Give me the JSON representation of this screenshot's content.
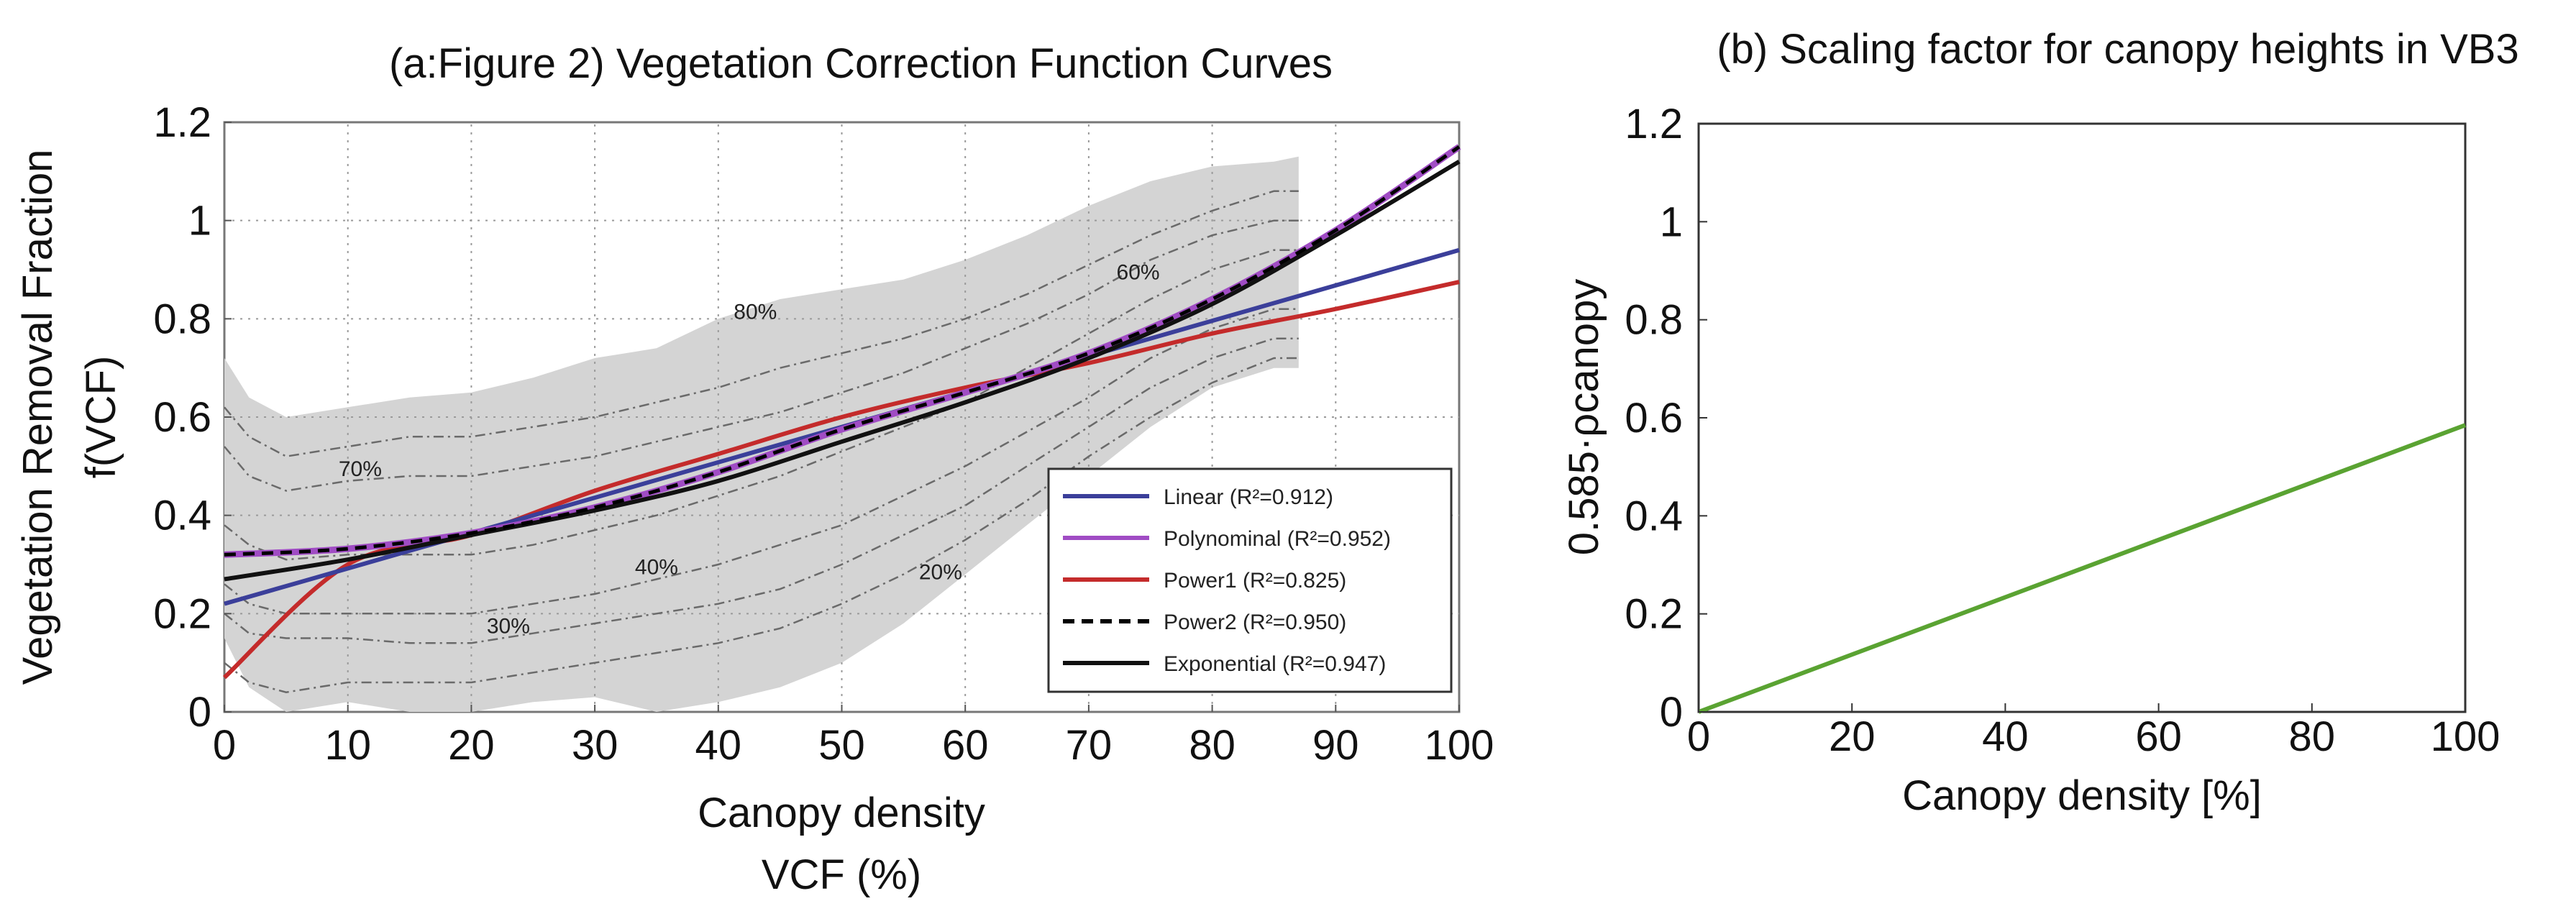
{
  "chart_data": [
    {
      "type": "line",
      "title": "(a:Figure 2) Vegetation Correction Function Curves",
      "xlabel": "Canopy density",
      "xlabel2": "VCF (%)",
      "ylabel": "Vegetation Removal Fraction",
      "ylabel2": "f(VCF)",
      "xlim": [
        0,
        100
      ],
      "ylim": [
        0,
        1.2
      ],
      "xticks": [
        "0",
        "10",
        "20",
        "30",
        "40",
        "50",
        "60",
        "70",
        "80",
        "90",
        "100"
      ],
      "yticks": [
        "0",
        "0.2",
        "0.4",
        "0.6",
        "0.8",
        "1",
        "1.2"
      ],
      "grid": true,
      "legend_position": "bottom-right",
      "x": [
        0,
        10,
        20,
        30,
        40,
        50,
        60,
        70,
        80,
        90,
        100
      ],
      "series": [
        {
          "name": "Linear (R²=0.912)",
          "color": "#3b3f9a",
          "dash": "solid",
          "values": [
            0.22,
            0.292,
            0.364,
            0.436,
            0.508,
            0.58,
            0.652,
            0.724,
            0.796,
            0.868,
            0.94
          ]
        },
        {
          "name": "Polynominal (R²=0.952)",
          "color": "#a04cc4",
          "dash": "solid",
          "values": [
            0.32,
            0.332,
            0.364,
            0.416,
            0.488,
            0.575,
            0.65,
            0.73,
            0.84,
            0.98,
            1.15
          ]
        },
        {
          "name": "Power1 (R²=0.825)",
          "color": "#c42b2b",
          "dash": "solid",
          "values": [
            0.07,
            0.3,
            0.36,
            0.45,
            0.525,
            0.6,
            0.66,
            0.71,
            0.77,
            0.82,
            0.875
          ]
        },
        {
          "name": "Power2 (R²=0.950)",
          "color": "#111111",
          "dash": "dashed",
          "values": [
            0.32,
            0.332,
            0.364,
            0.416,
            0.488,
            0.575,
            0.65,
            0.73,
            0.84,
            0.98,
            1.15
          ]
        },
        {
          "name": "Exponential (R²=0.947)",
          "color": "#111111",
          "dash": "solid",
          "values": [
            0.27,
            0.31,
            0.36,
            0.41,
            0.47,
            0.55,
            0.63,
            0.72,
            0.83,
            0.97,
            1.12
          ]
        }
      ],
      "band": {
        "x": [
          0,
          2,
          5,
          10,
          15,
          20,
          25,
          30,
          35,
          40,
          45,
          50,
          55,
          60,
          65,
          70,
          75,
          80,
          85,
          87
        ],
        "upper": [
          0.72,
          0.64,
          0.6,
          0.62,
          0.64,
          0.65,
          0.68,
          0.72,
          0.74,
          0.8,
          0.84,
          0.86,
          0.88,
          0.92,
          0.97,
          1.03,
          1.08,
          1.11,
          1.12,
          1.13
        ],
        "lower": [
          0.15,
          0.05,
          0.0,
          0.02,
          0.0,
          0.0,
          0.02,
          0.03,
          0.0,
          0.02,
          0.05,
          0.1,
          0.18,
          0.28,
          0.38,
          0.48,
          0.58,
          0.66,
          0.7,
          0.7
        ]
      },
      "percentile_lines": [
        {
          "label": "80%",
          "values": [
            0.62,
            0.56,
            0.52,
            0.54,
            0.56,
            0.56,
            0.58,
            0.6,
            0.63,
            0.66,
            0.7,
            0.73,
            0.76,
            0.8,
            0.85,
            0.91,
            0.97,
            1.02,
            1.06,
            1.06
          ]
        },
        {
          "label": "70%",
          "values": [
            0.54,
            0.48,
            0.45,
            0.47,
            0.48,
            0.48,
            0.5,
            0.52,
            0.55,
            0.58,
            0.61,
            0.65,
            0.69,
            0.74,
            0.79,
            0.85,
            0.92,
            0.97,
            1.0,
            1.0
          ]
        },
        {
          "label": "60%",
          "values": [
            0.38,
            0.34,
            0.31,
            0.32,
            0.32,
            0.32,
            0.34,
            0.37,
            0.4,
            0.44,
            0.48,
            0.53,
            0.58,
            0.63,
            0.7,
            0.77,
            0.84,
            0.9,
            0.94,
            0.94
          ]
        },
        {
          "label": "40%",
          "values": [
            0.26,
            0.22,
            0.2,
            0.2,
            0.2,
            0.2,
            0.22,
            0.24,
            0.27,
            0.3,
            0.34,
            0.38,
            0.44,
            0.5,
            0.57,
            0.64,
            0.72,
            0.78,
            0.82,
            0.82
          ]
        },
        {
          "label": "30%",
          "values": [
            0.2,
            0.16,
            0.15,
            0.15,
            0.14,
            0.14,
            0.16,
            0.18,
            0.2,
            0.22,
            0.25,
            0.3,
            0.36,
            0.42,
            0.5,
            0.58,
            0.66,
            0.72,
            0.76,
            0.76
          ]
        },
        {
          "label": "20%",
          "values": [
            0.1,
            0.06,
            0.04,
            0.06,
            0.06,
            0.06,
            0.08,
            0.1,
            0.12,
            0.14,
            0.17,
            0.22,
            0.28,
            0.35,
            0.43,
            0.52,
            0.6,
            0.67,
            0.72,
            0.72
          ]
        }
      ],
      "annotations": [
        {
          "text": "80%",
          "x": 43,
          "y": 0.8
        },
        {
          "text": "70%",
          "x": 11,
          "y": 0.48
        },
        {
          "text": "60%",
          "x": 74,
          "y": 0.88
        },
        {
          "text": "40%",
          "x": 35,
          "y": 0.28
        },
        {
          "text": "30%",
          "x": 23,
          "y": 0.16
        },
        {
          "text": "20%",
          "x": 58,
          "y": 0.27
        }
      ]
    },
    {
      "type": "line",
      "title": "(b) Scaling factor for canopy heights in VB3",
      "xlabel": "Canopy density [%]",
      "ylabel": "0.585·ρcanopy",
      "xlim": [
        0,
        100
      ],
      "ylim": [
        0,
        1.2
      ],
      "xticks": [
        "0",
        "20",
        "40",
        "60",
        "80",
        "100"
      ],
      "yticks": [
        "0",
        "0.2",
        "0.4",
        "0.6",
        "0.8",
        "1",
        "1.2"
      ],
      "grid": false,
      "series": [
        {
          "color": "#5aa332",
          "x": [
            0,
            100
          ],
          "values": [
            0,
            0.585
          ]
        }
      ]
    }
  ]
}
